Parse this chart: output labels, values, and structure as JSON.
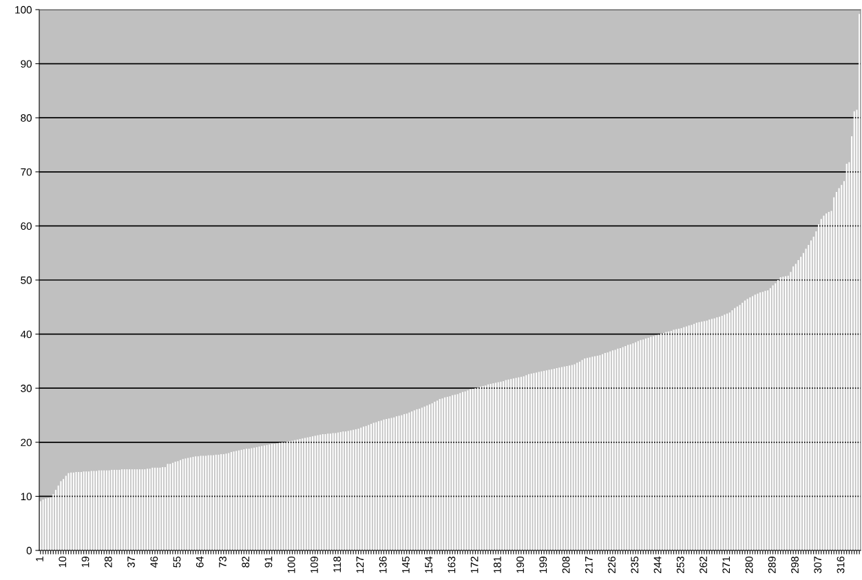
{
  "chart_data": {
    "type": "bar",
    "categories": [
      "1",
      null,
      null,
      null,
      null,
      null,
      null,
      null,
      null,
      "10",
      null,
      null,
      null,
      null,
      null,
      null,
      null,
      null,
      "19",
      null,
      null,
      null,
      null,
      null,
      null,
      null,
      null,
      "28",
      null,
      null,
      null,
      null,
      null,
      null,
      null,
      null,
      "37",
      null,
      null,
      null,
      null,
      null,
      null,
      null,
      null,
      "46",
      null,
      null,
      null,
      null,
      null,
      null,
      null,
      null,
      "55",
      null,
      null,
      null,
      null,
      null,
      null,
      null,
      null,
      "64",
      null,
      null,
      null,
      null,
      null,
      null,
      null,
      null,
      "73",
      null,
      null,
      null,
      null,
      null,
      null,
      null,
      null,
      "82",
      null,
      null,
      null,
      null,
      null,
      null,
      null,
      null,
      "91",
      null,
      null,
      null,
      null,
      null,
      null,
      null,
      null,
      "100",
      null,
      null,
      null,
      null,
      null,
      null,
      null,
      null,
      "109",
      null,
      null,
      null,
      null,
      null,
      null,
      null,
      null,
      "118",
      null,
      null,
      null,
      null,
      null,
      null,
      null,
      null,
      "127",
      null,
      null,
      null,
      null,
      null,
      null,
      null,
      null,
      "136",
      null,
      null,
      null,
      null,
      null,
      null,
      null,
      null,
      "145",
      null,
      null,
      null,
      null,
      null,
      null,
      null,
      null,
      "154",
      null,
      null,
      null,
      null,
      null,
      null,
      null,
      null,
      "163",
      null,
      null,
      null,
      null,
      null,
      null,
      null,
      null,
      "172",
      null,
      null,
      null,
      null,
      null,
      null,
      null,
      null,
      "181",
      null,
      null,
      null,
      null,
      null,
      null,
      null,
      null,
      "190",
      null,
      null,
      null,
      null,
      null,
      null,
      null,
      null,
      "199",
      null,
      null,
      null,
      null,
      null,
      null,
      null,
      null,
      "208",
      null,
      null,
      null,
      null,
      null,
      null,
      null,
      null,
      "217",
      null,
      null,
      null,
      null,
      null,
      null,
      null,
      null,
      "226",
      null,
      null,
      null,
      null,
      null,
      null,
      null,
      null,
      "235",
      null,
      null,
      null,
      null,
      null,
      null,
      null,
      null,
      "244",
      null,
      null,
      null,
      null,
      null,
      null,
      null,
      null,
      "253",
      null,
      null,
      null,
      null,
      null,
      null,
      null,
      null,
      "262",
      null,
      null,
      null,
      null,
      null,
      null,
      null,
      null,
      "271",
      null,
      null,
      null,
      null,
      null,
      null,
      null,
      null,
      "280",
      null,
      null,
      null,
      null,
      null,
      null,
      null,
      null,
      "289",
      null,
      null,
      null,
      null,
      null,
      null,
      null,
      null,
      "298",
      null,
      null,
      null,
      null,
      null,
      null,
      null,
      null,
      "307",
      null,
      null,
      null,
      null,
      null,
      null,
      null,
      null,
      "316",
      null,
      null,
      null,
      null,
      null,
      null,
      null
    ],
    "values": [
      9.1,
      9.4,
      9.6,
      9.7,
      9.8,
      10.4,
      11.2,
      12.0,
      12.8,
      13.2,
      13.8,
      14.3,
      14.4,
      14.4,
      14.5,
      14.5,
      14.5,
      14.6,
      14.6,
      14.6,
      14.7,
      14.7,
      14.7,
      14.8,
      14.8,
      14.8,
      14.8,
      14.8,
      14.9,
      14.9,
      14.9,
      14.9,
      15.0,
      15.0,
      15.0,
      15.0,
      15.0,
      15.0,
      15.0,
      15.0,
      15.0,
      15.0,
      15.1,
      15.1,
      15.3,
      15.3,
      15.3,
      15.3,
      15.4,
      15.4,
      16.0,
      16.0,
      16.2,
      16.4,
      16.5,
      16.7,
      16.9,
      17.0,
      17.1,
      17.2,
      17.3,
      17.4,
      17.4,
      17.5,
      17.5,
      17.5,
      17.6,
      17.6,
      17.6,
      17.7,
      17.7,
      17.8,
      17.8,
      17.9,
      18.0,
      18.2,
      18.3,
      18.4,
      18.5,
      18.6,
      18.7,
      18.8,
      18.8,
      18.9,
      19.0,
      19.1,
      19.2,
      19.3,
      19.4,
      19.5,
      19.6,
      19.7,
      19.7,
      19.8,
      19.9,
      20.0,
      20.0,
      20.1,
      20.2,
      20.3,
      20.4,
      20.5,
      20.6,
      20.7,
      20.8,
      20.9,
      21.0,
      21.1,
      21.2,
      21.3,
      21.4,
      21.5,
      21.5,
      21.6,
      21.6,
      21.7,
      21.7,
      21.8,
      21.9,
      22.0,
      22.0,
      22.1,
      22.2,
      22.3,
      22.4,
      22.5,
      22.7,
      22.9,
      23.0,
      23.2,
      23.4,
      23.6,
      23.7,
      23.9,
      24.0,
      24.2,
      24.3,
      24.4,
      24.5,
      24.6,
      24.8,
      24.9,
      25.0,
      25.2,
      25.3,
      25.5,
      25.7,
      25.9,
      26.1,
      26.2,
      26.4,
      26.6,
      26.8,
      27.0,
      27.2,
      27.5,
      27.7,
      28.0,
      28.1,
      28.3,
      28.4,
      28.5,
      28.7,
      28.8,
      28.9,
      29.1,
      29.3,
      29.4,
      29.6,
      29.8,
      29.9,
      30.0,
      30.1,
      30.3,
      30.4,
      30.5,
      30.7,
      30.8,
      30.9,
      31.0,
      31.1,
      31.2,
      31.3,
      31.5,
      31.6,
      31.7,
      31.8,
      31.9,
      32.0,
      32.1,
      32.2,
      32.4,
      32.6,
      32.7,
      32.8,
      32.9,
      33.0,
      33.1,
      33.2,
      33.3,
      33.4,
      33.5,
      33.6,
      33.7,
      33.8,
      33.9,
      34.0,
      34.1,
      34.2,
      34.3,
      34.4,
      34.7,
      34.9,
      35.2,
      35.5,
      35.6,
      35.7,
      35.8,
      35.9,
      36.0,
      36.1,
      36.3,
      36.5,
      36.6,
      36.8,
      37.0,
      37.1,
      37.3,
      37.4,
      37.6,
      37.8,
      38.0,
      38.1,
      38.3,
      38.5,
      38.7,
      38.9,
      39.0,
      39.2,
      39.3,
      39.5,
      39.6,
      39.8,
      39.9,
      40.1,
      40.2,
      40.4,
      40.5,
      40.6,
      40.8,
      40.9,
      41.0,
      41.1,
      41.3,
      41.4,
      41.6,
      41.7,
      41.9,
      42.1,
      42.2,
      42.3,
      42.4,
      42.5,
      42.7,
      42.8,
      42.9,
      43.1,
      43.2,
      43.4,
      43.6,
      43.8,
      44.0,
      44.4,
      44.8,
      45.1,
      45.4,
      45.8,
      46.2,
      46.5,
      46.8,
      47.0,
      47.3,
      47.5,
      47.7,
      47.8,
      48.0,
      48.1,
      48.5,
      49.0,
      49.4,
      50.0,
      50.5,
      50.6,
      50.7,
      50.8,
      51.5,
      52.5,
      53.0,
      53.7,
      54.3,
      55.0,
      55.8,
      56.5,
      57.3,
      58.0,
      59.0,
      60.3,
      61.3,
      61.9,
      62.3,
      62.6,
      62.8,
      65.3,
      66.3,
      67.0,
      67.6,
      68.3,
      71.5,
      71.8,
      76.6,
      81.2,
      81.5,
      99.2
    ],
    "color": "#ffffff",
    "ylim": [
      0,
      100
    ],
    "yticks": [
      0,
      10,
      20,
      30,
      40,
      50,
      60,
      70,
      80,
      90,
      100
    ],
    "grid": "y"
  }
}
